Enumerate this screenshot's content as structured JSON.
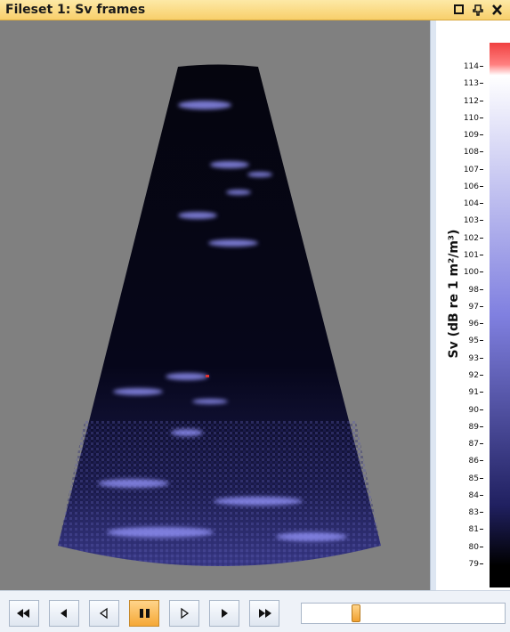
{
  "window": {
    "title": "Fileset 1: Sv frames"
  },
  "colorbar": {
    "label": "Sv (dB re 1 m²/m³)",
    "ticks": [
      114,
      113,
      112,
      110,
      109,
      108,
      107,
      106,
      104,
      103,
      102,
      101,
      100,
      98,
      97,
      96,
      95,
      93,
      92,
      91,
      90,
      89,
      87,
      86,
      85,
      84,
      83,
      81,
      80,
      79
    ]
  }
}
